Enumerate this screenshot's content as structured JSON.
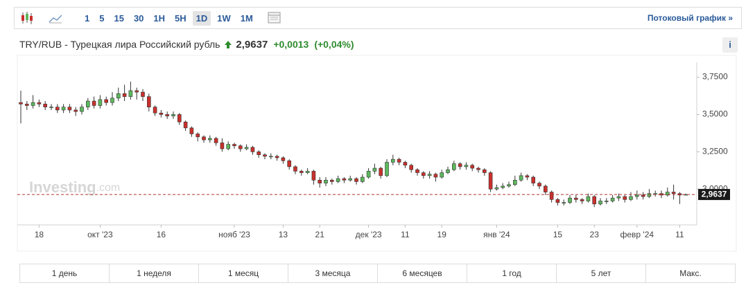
{
  "toolbar": {
    "intervals": [
      "1",
      "5",
      "15",
      "30",
      "1H",
      "5H",
      "1D",
      "1W",
      "1M"
    ],
    "stream_link": "Потоковый график »"
  },
  "header": {
    "symbol": "TRY/RUB - Турецкая лира Российский рубль",
    "price": "2,9637",
    "change": "+0,0013",
    "change_pct": "(+0,04%)",
    "info": "i"
  },
  "periods": [
    "1 день",
    "1 неделя",
    "1 месяц",
    "3 месяца",
    "6 месяцев",
    "1 год",
    "5 лет",
    "Макс."
  ],
  "chart_data": {
    "type": "candlestick",
    "watermark": [
      "Investing",
      ".com"
    ],
    "categories": [
      null,
      null,
      null,
      "18",
      null,
      null,
      null,
      null,
      null,
      null,
      null,
      null,
      null,
      "окт '23",
      null,
      null,
      null,
      null,
      null,
      null,
      null,
      null,
      null,
      "16",
      null,
      null,
      null,
      null,
      null,
      null,
      null,
      null,
      null,
      null,
      null,
      "нояб '23",
      null,
      null,
      null,
      null,
      null,
      null,
      null,
      "13",
      null,
      null,
      null,
      null,
      null,
      "21",
      null,
      null,
      null,
      null,
      null,
      null,
      null,
      "дек '23",
      null,
      null,
      null,
      null,
      null,
      "11",
      null,
      null,
      null,
      null,
      null,
      "19",
      null,
      null,
      null,
      null,
      null,
      null,
      null,
      null,
      "янв '24",
      null,
      null,
      null,
      null,
      null,
      null,
      null,
      null,
      null,
      "15",
      null,
      null,
      null,
      null,
      null,
      "23",
      null,
      null,
      null,
      null,
      null,
      null,
      "февр '24",
      null,
      null,
      null,
      null,
      null,
      null,
      "11",
      null
    ],
    "open": [
      3.58,
      3.57,
      3.56,
      3.58,
      3.57,
      3.55,
      3.55,
      3.53,
      3.55,
      3.53,
      3.52,
      3.55,
      3.59,
      3.56,
      3.6,
      3.58,
      3.61,
      3.64,
      3.62,
      3.66,
      3.65,
      3.62,
      3.55,
      3.51,
      3.5,
      3.49,
      3.5,
      3.45,
      3.41,
      3.37,
      3.35,
      3.33,
      3.34,
      3.31,
      3.27,
      3.3,
      3.29,
      3.27,
      3.28,
      3.25,
      3.23,
      3.22,
      3.22,
      3.21,
      3.19,
      3.15,
      3.12,
      3.11,
      3.12,
      3.06,
      3.04,
      3.06,
      3.05,
      3.07,
      3.06,
      3.07,
      3.05,
      3.08,
      3.12,
      3.14,
      3.09,
      3.18,
      3.2,
      3.18,
      3.16,
      3.13,
      3.11,
      3.09,
      3.1,
      3.08,
      3.11,
      3.13,
      3.17,
      3.15,
      3.16,
      3.14,
      3.13,
      3.11,
      3.0,
      3.01,
      3.02,
      3.03,
      3.06,
      3.09,
      3.08,
      3.04,
      3.02,
      2.98,
      2.93,
      2.91,
      2.91,
      2.94,
      2.93,
      2.92,
      2.95,
      2.9,
      2.92,
      2.92,
      2.94,
      2.95,
      2.93,
      2.95,
      2.96,
      2.95,
      2.97,
      2.97,
      2.96,
      2.98,
      2.97,
      2.9624
    ],
    "high": [
      3.66,
      3.59,
      3.63,
      3.6,
      3.59,
      3.57,
      3.57,
      3.57,
      3.57,
      3.55,
      3.57,
      3.61,
      3.62,
      3.63,
      3.62,
      3.65,
      3.68,
      3.7,
      3.72,
      3.68,
      3.67,
      3.64,
      3.56,
      3.53,
      3.52,
      3.52,
      3.51,
      3.46,
      3.42,
      3.38,
      3.36,
      3.36,
      3.35,
      3.34,
      3.32,
      3.31,
      3.3,
      3.3,
      3.29,
      3.26,
      3.24,
      3.24,
      3.23,
      3.22,
      3.2,
      3.16,
      3.13,
      3.14,
      3.13,
      3.08,
      3.08,
      3.07,
      3.09,
      3.08,
      3.09,
      3.08,
      3.1,
      3.14,
      3.17,
      3.15,
      3.2,
      3.23,
      3.21,
      3.19,
      3.17,
      3.14,
      3.12,
      3.12,
      3.11,
      3.13,
      3.15,
      3.19,
      3.18,
      3.18,
      3.17,
      3.15,
      3.14,
      3.12,
      3.03,
      3.04,
      3.05,
      3.09,
      3.11,
      3.1,
      3.09,
      3.05,
      3.03,
      2.99,
      2.94,
      2.93,
      2.96,
      2.96,
      2.94,
      2.97,
      2.96,
      2.94,
      2.94,
      2.96,
      2.97,
      2.96,
      2.98,
      2.99,
      2.98,
      3.0,
      2.99,
      2.99,
      3.01,
      3.03,
      2.98,
      2.97
    ],
    "low": [
      3.44,
      3.53,
      3.54,
      3.55,
      3.53,
      3.53,
      3.51,
      3.51,
      3.51,
      3.49,
      3.5,
      3.53,
      3.54,
      3.54,
      3.56,
      3.56,
      3.59,
      3.59,
      3.6,
      3.6,
      3.59,
      3.52,
      3.49,
      3.48,
      3.47,
      3.47,
      3.43,
      3.39,
      3.35,
      3.32,
      3.31,
      3.31,
      3.29,
      3.25,
      3.26,
      3.27,
      3.25,
      3.26,
      3.23,
      3.21,
      3.2,
      3.2,
      3.19,
      3.17,
      3.13,
      3.1,
      3.09,
      3.1,
      3.03,
      3.01,
      3.02,
      3.03,
      3.04,
      3.04,
      3.05,
      3.03,
      3.04,
      3.07,
      3.1,
      3.07,
      3.08,
      3.16,
      3.16,
      3.14,
      3.11,
      3.09,
      3.07,
      3.07,
      3.05,
      3.07,
      3.1,
      3.12,
      3.13,
      3.13,
      3.12,
      3.11,
      3.09,
      2.98,
      2.99,
      3.0,
      3.01,
      3.02,
      3.05,
      3.06,
      3.02,
      3.0,
      2.96,
      2.91,
      2.89,
      2.89,
      2.9,
      2.91,
      2.9,
      2.91,
      2.88,
      2.89,
      2.9,
      2.91,
      2.92,
      2.91,
      2.92,
      2.93,
      2.93,
      2.94,
      2.95,
      2.94,
      2.95,
      2.93,
      2.9,
      2.96
    ],
    "close": [
      3.57,
      3.56,
      3.58,
      3.57,
      3.55,
      3.55,
      3.53,
      3.55,
      3.53,
      3.52,
      3.55,
      3.59,
      3.56,
      3.6,
      3.58,
      3.61,
      3.64,
      3.62,
      3.66,
      3.65,
      3.62,
      3.55,
      3.51,
      3.5,
      3.49,
      3.5,
      3.45,
      3.41,
      3.37,
      3.35,
      3.33,
      3.34,
      3.31,
      3.27,
      3.3,
      3.29,
      3.27,
      3.28,
      3.25,
      3.23,
      3.22,
      3.22,
      3.21,
      3.19,
      3.15,
      3.12,
      3.11,
      3.12,
      3.06,
      3.04,
      3.06,
      3.05,
      3.07,
      3.06,
      3.07,
      3.05,
      3.08,
      3.12,
      3.14,
      3.09,
      3.18,
      3.2,
      3.18,
      3.16,
      3.13,
      3.11,
      3.09,
      3.1,
      3.08,
      3.11,
      3.13,
      3.17,
      3.15,
      3.16,
      3.14,
      3.13,
      3.11,
      3.0,
      3.01,
      3.02,
      3.03,
      3.06,
      3.09,
      3.08,
      3.04,
      3.02,
      2.98,
      2.93,
      2.91,
      2.91,
      2.94,
      2.93,
      2.92,
      2.95,
      2.9,
      2.92,
      2.92,
      2.94,
      2.95,
      2.93,
      2.95,
      2.96,
      2.95,
      2.97,
      2.97,
      2.96,
      2.98,
      2.97,
      2.96,
      2.9637
    ],
    "up_color": "#5cb85c",
    "down_color": "#c9302c",
    "wick_color": "#333333",
    "ylim": [
      2.76,
      3.85
    ],
    "yticks": [
      {
        "value": 3,
        "label": "3,0000"
      },
      {
        "value": 3.25,
        "label": "3,2500"
      },
      {
        "value": 3.5,
        "label": "3,5000"
      },
      {
        "value": 3.75,
        "label": "3,7500"
      }
    ],
    "grid": false,
    "last_price": {
      "value": 2.9637,
      "label": "2,9637"
    }
  }
}
